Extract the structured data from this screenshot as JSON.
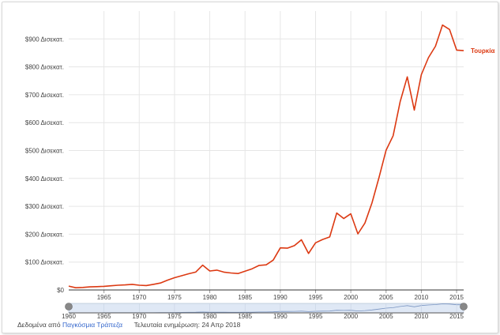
{
  "chart_data": {
    "type": "line",
    "series": [
      {
        "name": "Τουρκία",
        "x": [
          1960,
          1961,
          1962,
          1963,
          1964,
          1965,
          1966,
          1967,
          1968,
          1969,
          1970,
          1971,
          1972,
          1973,
          1974,
          1975,
          1976,
          1977,
          1978,
          1979,
          1980,
          1981,
          1982,
          1983,
          1984,
          1985,
          1986,
          1987,
          1988,
          1989,
          1990,
          1991,
          1992,
          1993,
          1994,
          1995,
          1996,
          1997,
          1998,
          1999,
          2000,
          2001,
          2002,
          2003,
          2004,
          2005,
          2006,
          2007,
          2008,
          2009,
          2010,
          2011,
          2012,
          2013,
          2014,
          2015,
          2016
        ],
        "values": [
          14,
          8,
          9,
          11,
          12,
          13,
          15,
          17,
          18,
          20,
          17,
          16,
          20,
          25,
          35,
          44,
          51,
          58,
          64,
          89,
          68,
          71,
          64,
          61,
          59,
          67,
          76,
          88,
          90,
          107,
          151,
          150,
          159,
          180,
          131,
          169,
          181,
          190,
          276,
          256,
          273,
          201,
          240,
          312,
          404,
          501,
          553,
          675,
          764,
          645,
          772,
          833,
          874,
          950,
          934,
          860,
          858
        ]
      }
    ],
    "color": "#dc3912",
    "xlim": [
      1960,
      2016
    ],
    "ylim": [
      0,
      1000
    ],
    "y_ticks": [
      0,
      100,
      200,
      300,
      400,
      500,
      600,
      700,
      800,
      900
    ],
    "y_tick_labels": [
      "$0",
      "$100 Δισεκατ.",
      "$200 Δισεκατ.",
      "$300 Δισεκατ.",
      "$400 Δισεκατ.",
      "$500 Δισεκατ.",
      "$600 Δισεκατ.",
      "$700 Δισεκατ.",
      "$800 Δισεκατ.",
      "$900 Δισεκατ."
    ],
    "x_ticks": [
      1965,
      1970,
      1975,
      1980,
      1985,
      1990,
      1995,
      2000,
      2005,
      2010,
      2015
    ],
    "x_tick_labels": [
      "1965",
      "1970",
      "1975",
      "1980",
      "1985",
      "1990",
      "1995",
      "2000",
      "2005",
      "2010",
      "2015"
    ],
    "range_x_ticks": [
      1960,
      1965,
      1970,
      1975,
      1980,
      1985,
      1990,
      1995,
      2000,
      2005,
      2010,
      2015
    ],
    "range_x_tick_labels": [
      "1960",
      "1965",
      "1970",
      "1975",
      "1980",
      "1985",
      "1990",
      "1995",
      "2000",
      "2005",
      "2010",
      "2015"
    ],
    "grid": true,
    "legend_position": "right-inline"
  },
  "footer": {
    "source_prefix": "Δεδομένα από",
    "source_link": "Παγκόσμια Τράπεζα",
    "updated": "Τελευταία ενημέρωση: 24 Απρ 2018"
  }
}
